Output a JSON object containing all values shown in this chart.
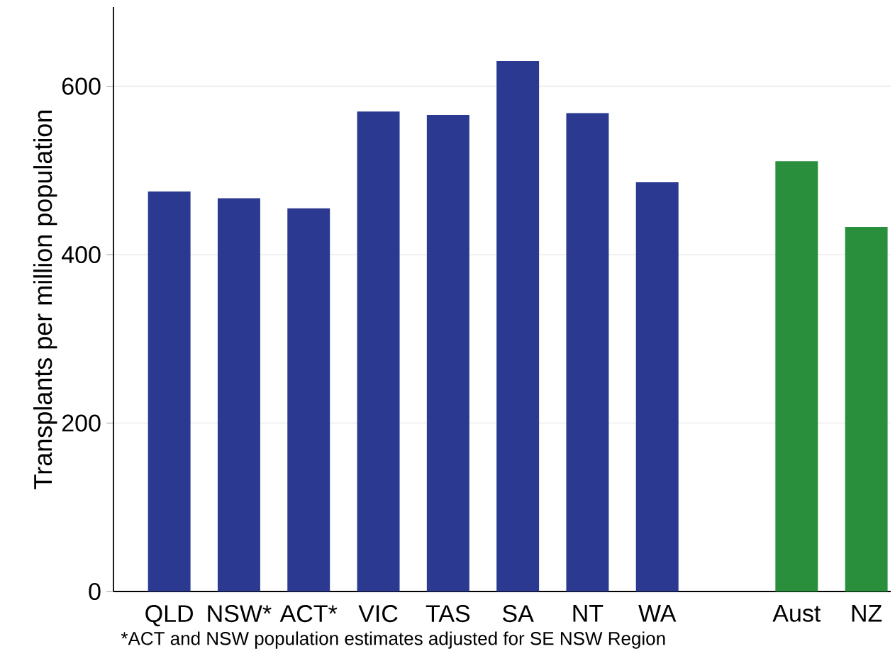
{
  "chart_data": {
    "type": "bar",
    "ylabel": "Transplants per million population",
    "categories": [
      "QLD",
      "NSW*",
      "ACT*",
      "VIC",
      "TAS",
      "SA",
      "NT",
      "WA",
      null,
      "Aust",
      "NZ"
    ],
    "values": [
      475,
      467,
      455,
      570,
      566,
      630,
      568,
      486,
      null,
      511,
      433
    ],
    "colors": [
      "#2b3990",
      "#2b3990",
      "#2b3990",
      "#2b3990",
      "#2b3990",
      "#2b3990",
      "#2b3990",
      "#2b3990",
      "#2b3990",
      "#2a8f3c",
      "#2a8f3c"
    ],
    "ylim": [
      0,
      694
    ],
    "yticks": [
      0,
      200,
      400,
      600
    ],
    "grid": "y",
    "annotations": [
      "*ACT and NSW population estimates adjusted for SE NSW Region"
    ]
  }
}
